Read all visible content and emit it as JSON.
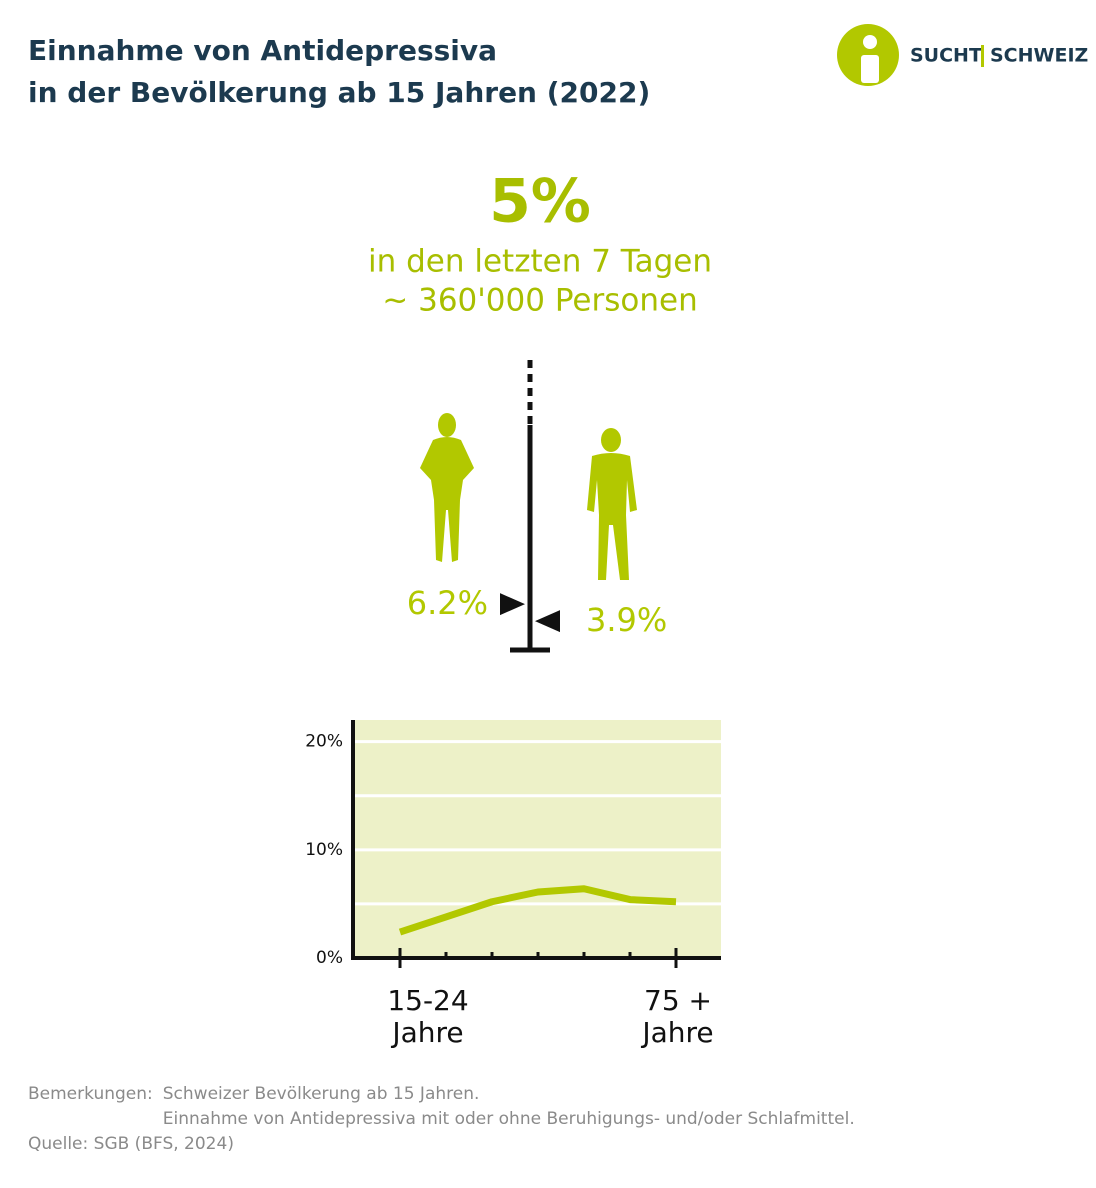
{
  "header": {
    "title_lines": [
      "Einnahme von Antidepressiva",
      "in der Bevölkerung ab 15 Jahren (2022)"
    ],
    "logo_left": "SUCHT",
    "logo_right": "SCHWEIZ"
  },
  "headline": {
    "value": "5%",
    "lines": [
      "in den letzten 7 Tagen",
      "~ 360'000 Personen"
    ]
  },
  "gender": {
    "values": [
      6.2,
      3.9
    ],
    "value_labels": [
      "6.2%",
      "3.9%"
    ],
    "color": "#b2c800"
  },
  "chart_data": {
    "type": "line",
    "categories": [
      "15-24 Jahre",
      null,
      null,
      null,
      null,
      null,
      "75 + Jahre"
    ],
    "series": [
      {
        "color": "#b2c800",
        "values": [
          2.4,
          3.8,
          5.2,
          6.1,
          6.4,
          5.4,
          5.2
        ]
      }
    ],
    "ylim": [
      0,
      22
    ],
    "yticks": [
      {
        "value": 0,
        "label": "0%"
      },
      {
        "value": 10,
        "label": "10%"
      },
      {
        "value": 20,
        "label": "20%"
      }
    ],
    "minor_yticks": [
      5,
      15
    ],
    "grid": true,
    "background": "#edf1c8"
  },
  "notes": {
    "label": "Bemerkungen:",
    "lines": [
      "Schweizer Bevölkerung ab 15 Jahren.",
      "Einnahme von Antidepressiva mit oder ohne Beruhigungs- und/oder Schlafmittel."
    ],
    "source": "Quelle: SGB (BFS, 2024)"
  }
}
